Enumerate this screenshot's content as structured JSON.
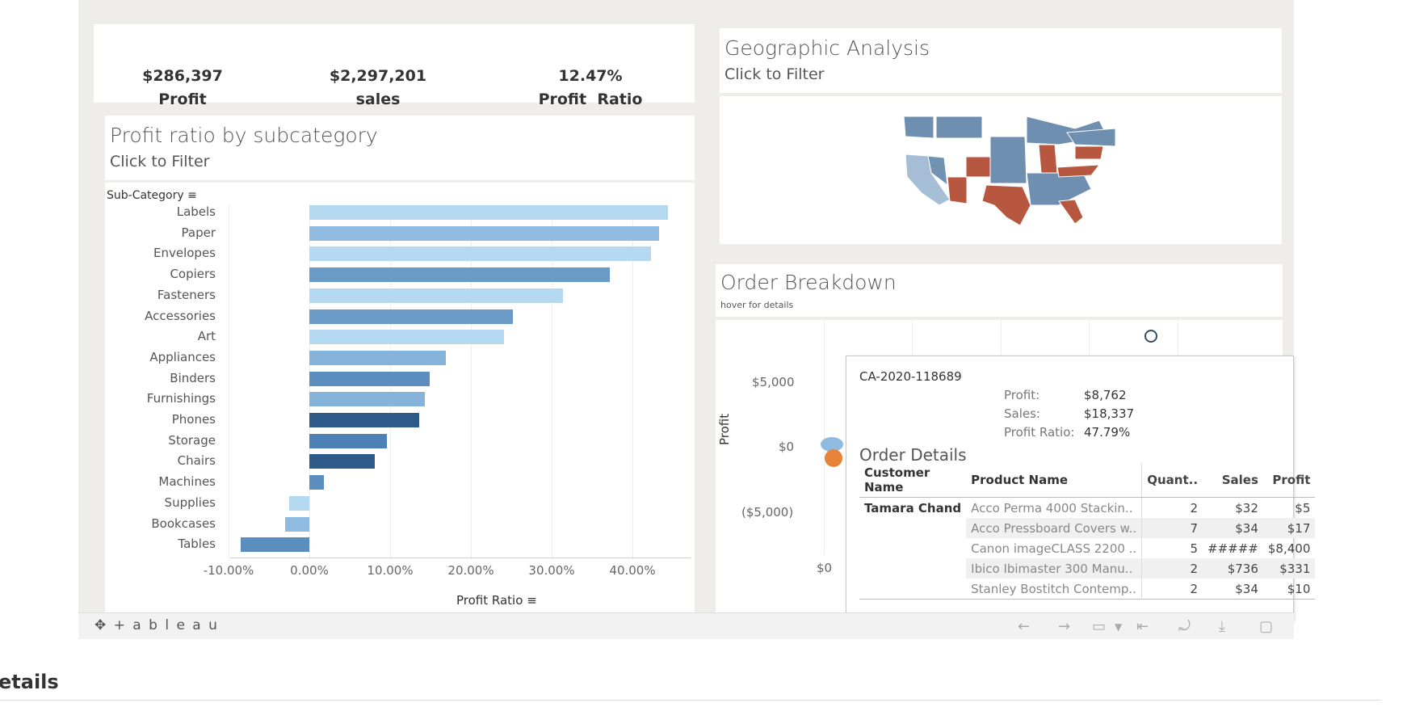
{
  "kpis": [
    {
      "value": "$286,397",
      "label": "Profit"
    },
    {
      "value": "$2,297,201",
      "label": "sales"
    },
    {
      "value": "12.47%",
      "label": "Profit  Ratio"
    }
  ],
  "geo": {
    "title": "Geographic Analysis",
    "subtitle": "Click to Filter"
  },
  "bar_panel": {
    "title": "Profit ratio by subcategory",
    "subtitle": "Click to Filter",
    "axis_header": "Sub-Category"
  },
  "chart_data": {
    "type": "bar",
    "orientation": "horizontal",
    "categories": [
      "Labels",
      "Paper",
      "Envelopes",
      "Copiers",
      "Fasteners",
      "Accessories",
      "Art",
      "Appliances",
      "Binders",
      "Furnishings",
      "Phones",
      "Storage",
      "Chairs",
      "Machines",
      "Supplies",
      "Bookcases",
      "Tables"
    ],
    "values": [
      44.4,
      43.3,
      42.3,
      37.2,
      31.4,
      25.2,
      24.1,
      16.9,
      14.9,
      14.3,
      13.6,
      9.6,
      8.1,
      1.8,
      -2.5,
      -3.0,
      -8.5
    ],
    "colors": [
      "#b5d9f0",
      "#8fbbe0",
      "#b5d9f0",
      "#6a9bc6",
      "#b5d9f0",
      "#6a9bc6",
      "#b5d9f0",
      "#86b3da",
      "#5b8ebf",
      "#86b3da",
      "#2d5a89",
      "#4d80b4",
      "#2d5a89",
      "#5b8ebf",
      "#b5d9f0",
      "#8fbbe0",
      "#5b8ebf"
    ],
    "xlabel": "Profit Ratio",
    "xticks": [
      "-10.00%",
      "0.00%",
      "10.00%",
      "20.00%",
      "30.00%",
      "40.00%"
    ],
    "xlim": [
      -10,
      45
    ]
  },
  "order": {
    "title": "Order Breakdown",
    "subtitle": "hover for details",
    "ylabel": "Profit",
    "yticks": [
      "$5,000",
      "$0",
      "($5,000)"
    ],
    "xtick": "$0"
  },
  "tooltip": {
    "order_id": "CA-2020-118689",
    "profit_label": "Profit:",
    "profit": "$8,762",
    "sales_label": "Sales:",
    "sales": "$18,337",
    "ratio_label": "Profit Ratio:",
    "ratio": "47.79%",
    "details_title": "Order Details",
    "headers": [
      "Customer Name",
      "Product Name",
      "Quant..",
      "Sales",
      "Profit"
    ],
    "customer": "Tamara Chand",
    "rows": [
      {
        "product": "Acco Perma 4000 Stackin..",
        "qty": "2",
        "sales": "$32",
        "profit": "$5"
      },
      {
        "product": "Acco Pressboard Covers w..",
        "qty": "7",
        "sales": "$34",
        "profit": "$17"
      },
      {
        "product": "Canon imageCLASS 2200 ..",
        "qty": "5",
        "sales": "#####",
        "profit": "$8,400"
      },
      {
        "product": "Ibico Ibimaster 300 Manu..",
        "qty": "2",
        "sales": "$736",
        "profit": "$331"
      },
      {
        "product": "Stanley Bostitch Contemp..",
        "qty": "2",
        "sales": "$34",
        "profit": "$10"
      }
    ]
  },
  "footer": {
    "logo": "+ a b l e a u"
  },
  "below": {
    "heading": "etails"
  }
}
